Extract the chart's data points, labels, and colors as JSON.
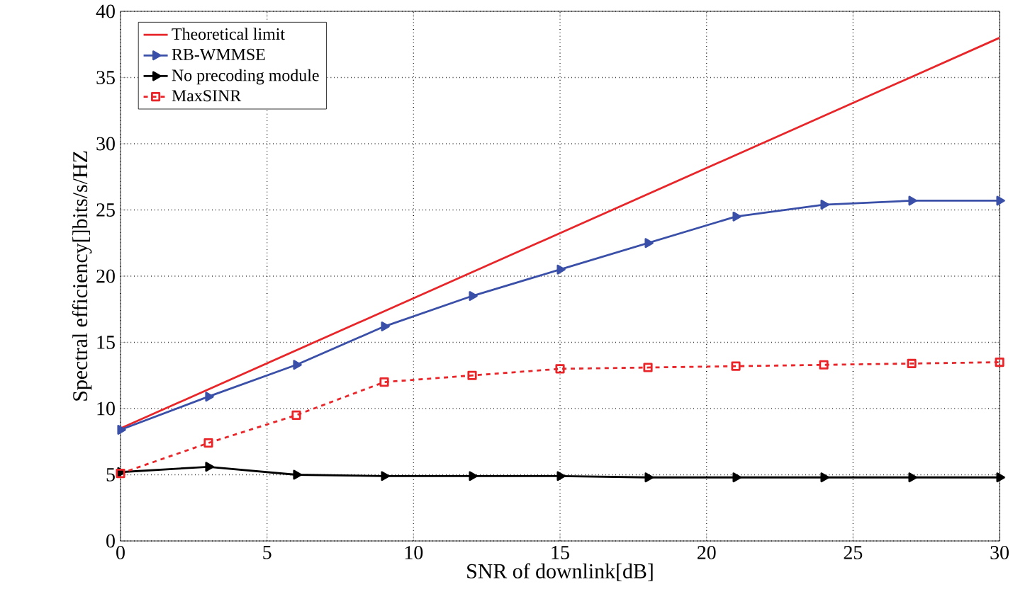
{
  "chart_data": {
    "type": "line",
    "xlabel": "SNR of downlink[dB]",
    "ylabel": "Spectral efficiency[]bits/s/HZ",
    "xlim": [
      0,
      30
    ],
    "ylim": [
      0,
      40
    ],
    "xticks": [
      0,
      5,
      10,
      15,
      20,
      25,
      30
    ],
    "yticks": [
      0,
      5,
      10,
      15,
      20,
      25,
      30,
      35,
      40
    ],
    "grid": true,
    "legend": "top left",
    "series": [
      {
        "name": "Theoretical limit",
        "color": "#e8262a",
        "x": [
          0,
          30
        ],
        "values": [
          8.5,
          38
        ],
        "marker": "none",
        "line_style": "solid"
      },
      {
        "name": "RB-WMMSE",
        "color": "#3a4fa8",
        "x": [
          0,
          3,
          6,
          9,
          12,
          15,
          18,
          21,
          24,
          27,
          30
        ],
        "values": [
          8.4,
          10.9,
          13.3,
          16.2,
          18.5,
          20.5,
          22.5,
          24.5,
          25.4,
          25.7,
          25.7
        ],
        "marker": "triangle",
        "line_style": "solid"
      },
      {
        "name": "No precoding module",
        "color": "#000000",
        "x": [
          0,
          3,
          6,
          9,
          12,
          15,
          18,
          21,
          24,
          27,
          30
        ],
        "values": [
          5.2,
          5.6,
          5.0,
          4.9,
          4.9,
          4.9,
          4.8,
          4.8,
          4.8,
          4.8,
          4.8
        ],
        "marker": "triangle",
        "line_style": "solid"
      },
      {
        "name": "MaxSINR",
        "color": "#e8262a",
        "x": [
          0,
          3,
          6,
          9,
          12,
          15,
          18,
          21,
          24,
          27,
          30
        ],
        "values": [
          5.1,
          7.4,
          9.5,
          12.0,
          12.5,
          13.0,
          13.1,
          13.2,
          13.3,
          13.4,
          13.5
        ],
        "marker": "square",
        "line_style": "dashed"
      }
    ]
  }
}
